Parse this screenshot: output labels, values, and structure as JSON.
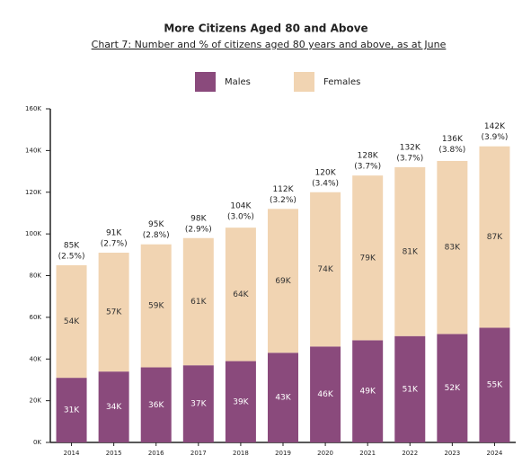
{
  "chart_data": {
    "type": "stacked_bar",
    "title": "More Citizens Aged 80 and Above",
    "subtitle": "Chart 7: Number and % of citizens aged 80 years and above, as at June",
    "categories": [
      "2014",
      "2015",
      "2016",
      "2017",
      "2018",
      "2019",
      "2020",
      "2021",
      "2022",
      "2023",
      "2024"
    ],
    "series": [
      {
        "name": "Males",
        "color": "#8a4a7c",
        "values": [
          31000,
          34000,
          36000,
          37000,
          39000,
          43000,
          46000,
          49000,
          51000,
          52000,
          55000
        ],
        "value_labels": [
          "31K",
          "34K",
          "36K",
          "37K",
          "39K",
          "43K",
          "46K",
          "49K",
          "51K",
          "52K",
          "55K"
        ]
      },
      {
        "name": "Females",
        "color": "#f1d4b2",
        "values": [
          54000,
          57000,
          59000,
          61000,
          64000,
          69000,
          74000,
          79000,
          81000,
          83000,
          87000
        ],
        "value_labels": [
          "54K",
          "57K",
          "59K",
          "61K",
          "64K",
          "69K",
          "74K",
          "79K",
          "81K",
          "83K",
          "87K"
        ]
      }
    ],
    "totals": [
      85000,
      91000,
      95000,
      98000,
      104000,
      112000,
      120000,
      128000,
      132000,
      136000,
      142000
    ],
    "total_labels": [
      "85K",
      "91K",
      "95K",
      "98K",
      "104K",
      "112K",
      "120K",
      "128K",
      "132K",
      "136K",
      "142K"
    ],
    "shares": [
      2.5,
      2.7,
      2.8,
      2.9,
      3.0,
      3.2,
      3.4,
      3.7,
      3.7,
      3.8,
      3.9
    ],
    "share_labels": [
      "(2.5%)",
      "(2.7%)",
      "(2.8%)",
      "(2.9%)",
      "(3.0%)",
      "(3.2%)",
      "(3.4%)",
      "(3.7%)",
      "(3.7%)",
      "(3.8%)",
      "(3.9%)"
    ],
    "ylim": [
      0,
      160000
    ],
    "yticks": [
      {
        "value": 0,
        "label": "0K"
      },
      {
        "value": 20000,
        "label": "20K"
      },
      {
        "value": 40000,
        "label": "40K"
      },
      {
        "value": 60000,
        "label": "60K"
      },
      {
        "value": 80000,
        "label": "80K"
      },
      {
        "value": 100000,
        "label": "100K"
      },
      {
        "value": 120000,
        "label": "120K"
      },
      {
        "value": 140000,
        "label": "140K"
      },
      {
        "value": 160000,
        "label": "160K"
      }
    ],
    "legend": "top"
  }
}
